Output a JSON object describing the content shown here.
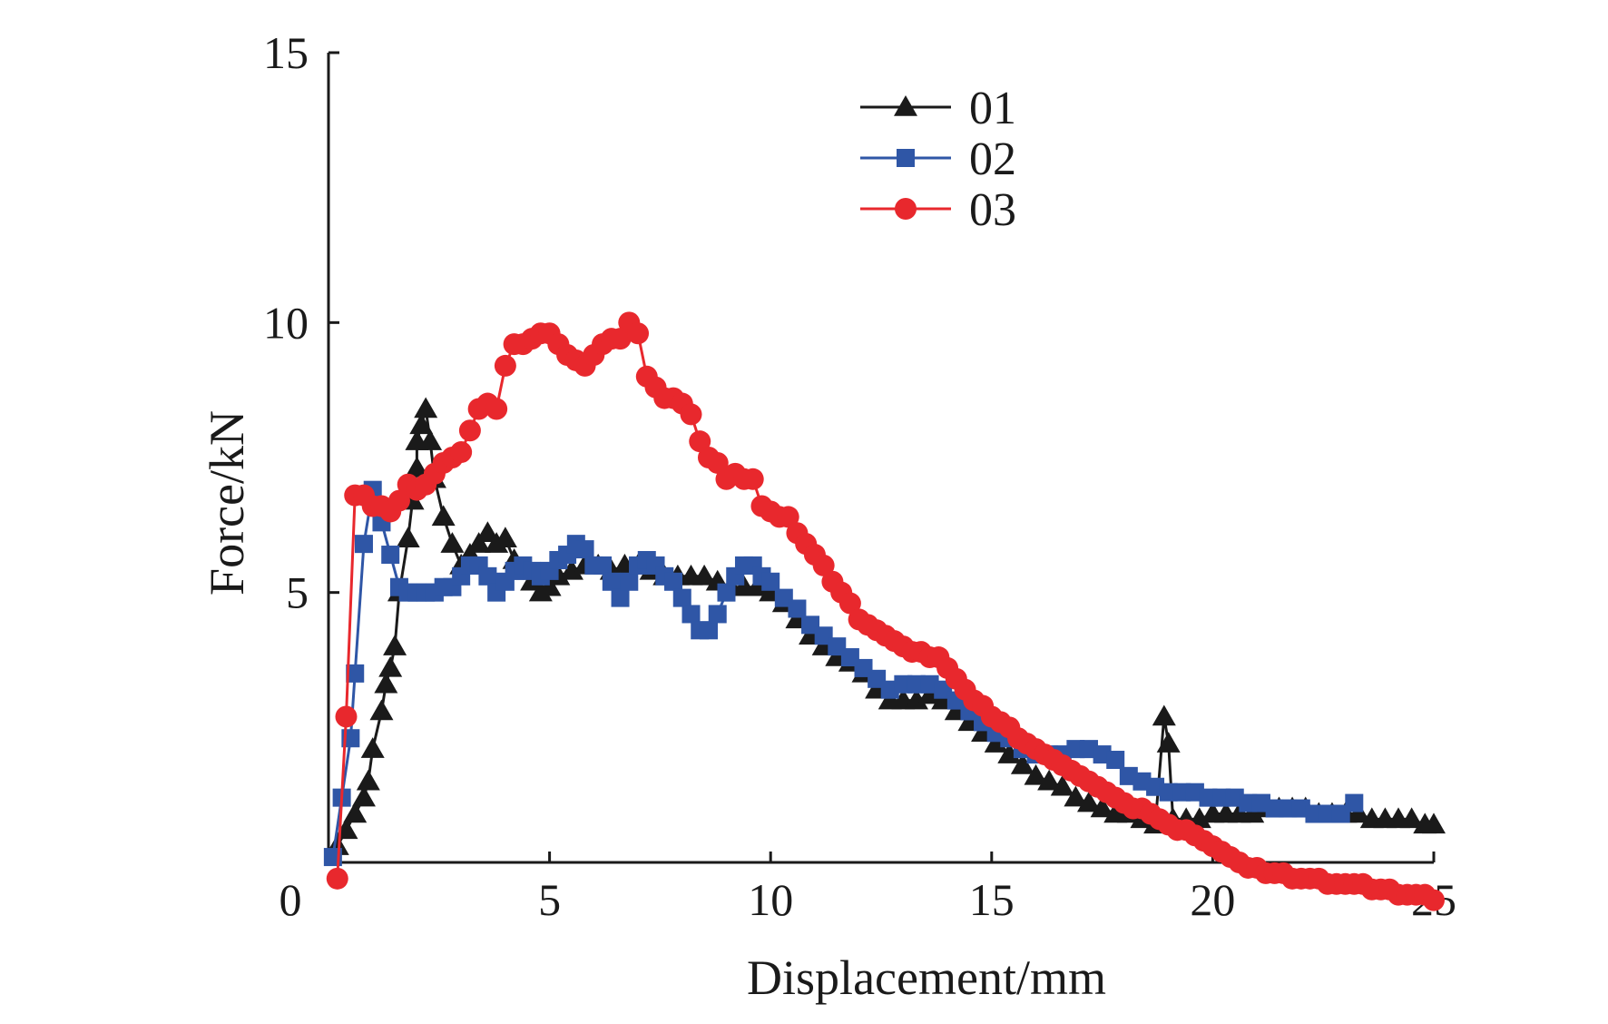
{
  "chart_data": {
    "type": "line",
    "xlabel": "Displacement/mm",
    "ylabel": "Force/kN",
    "xlim": [
      0,
      25
    ],
    "ylim": [
      0,
      15
    ],
    "xticks": [
      "0",
      "5",
      "10",
      "15",
      "20",
      "25"
    ],
    "yticks": [
      "5",
      "10",
      "15"
    ],
    "grid": false,
    "legend_position": "top-center",
    "series": [
      {
        "name": "01",
        "marker": "triangle",
        "color": "#1a1a1a",
        "points": [
          [
            0.2,
            0.3
          ],
          [
            0.4,
            0.6
          ],
          [
            0.6,
            0.9
          ],
          [
            0.8,
            1.2
          ],
          [
            0.9,
            1.5
          ],
          [
            1.0,
            2.1
          ],
          [
            1.2,
            2.8
          ],
          [
            1.3,
            3.3
          ],
          [
            1.4,
            3.6
          ],
          [
            1.5,
            4.0
          ],
          [
            1.6,
            5.0
          ],
          [
            1.8,
            6.0
          ],
          [
            1.9,
            6.7
          ],
          [
            2.0,
            7.3
          ],
          [
            2.0,
            7.8
          ],
          [
            2.1,
            8.1
          ],
          [
            2.2,
            8.4
          ],
          [
            2.3,
            7.8
          ],
          [
            2.4,
            7.1
          ],
          [
            2.6,
            6.4
          ],
          [
            2.8,
            5.9
          ],
          [
            3.0,
            5.5
          ],
          [
            3.2,
            5.7
          ],
          [
            3.4,
            5.9
          ],
          [
            3.6,
            6.1
          ],
          [
            3.8,
            5.9
          ],
          [
            4.0,
            6.0
          ],
          [
            4.2,
            5.6
          ],
          [
            4.4,
            5.4
          ],
          [
            4.6,
            5.2
          ],
          [
            4.8,
            5.0
          ],
          [
            5.0,
            5.1
          ],
          [
            5.2,
            5.3
          ],
          [
            5.5,
            5.4
          ],
          [
            5.8,
            5.5
          ],
          [
            6.1,
            5.5
          ],
          [
            6.4,
            5.4
          ],
          [
            6.7,
            5.5
          ],
          [
            7.0,
            5.5
          ],
          [
            7.3,
            5.4
          ],
          [
            7.6,
            5.3
          ],
          [
            7.9,
            5.3
          ],
          [
            8.2,
            5.3
          ],
          [
            8.5,
            5.3
          ],
          [
            8.8,
            5.2
          ],
          [
            9.1,
            5.1
          ],
          [
            9.4,
            5.1
          ],
          [
            9.7,
            5.1
          ],
          [
            10.0,
            5.0
          ],
          [
            10.3,
            4.8
          ],
          [
            10.6,
            4.5
          ],
          [
            10.9,
            4.2
          ],
          [
            11.2,
            4.0
          ],
          [
            11.5,
            3.8
          ],
          [
            11.8,
            3.7
          ],
          [
            12.1,
            3.5
          ],
          [
            12.4,
            3.2
          ],
          [
            12.7,
            3.0
          ],
          [
            13.0,
            3.0
          ],
          [
            13.3,
            3.0
          ],
          [
            13.6,
            3.1
          ],
          [
            13.9,
            3.0
          ],
          [
            14.2,
            2.8
          ],
          [
            14.5,
            2.6
          ],
          [
            14.8,
            2.4
          ],
          [
            15.1,
            2.2
          ],
          [
            15.4,
            2.0
          ],
          [
            15.7,
            1.8
          ],
          [
            16.0,
            1.6
          ],
          [
            16.3,
            1.5
          ],
          [
            16.6,
            1.4
          ],
          [
            16.9,
            1.2
          ],
          [
            17.2,
            1.1
          ],
          [
            17.5,
            1.0
          ],
          [
            17.8,
            0.9
          ],
          [
            18.1,
            0.9
          ],
          [
            18.4,
            0.8
          ],
          [
            18.7,
            0.7
          ],
          [
            18.9,
            2.7
          ],
          [
            19.0,
            2.2
          ],
          [
            19.1,
            0.8
          ],
          [
            19.4,
            0.8
          ],
          [
            19.7,
            0.8
          ],
          [
            20.0,
            0.9
          ],
          [
            20.3,
            0.9
          ],
          [
            20.6,
            0.9
          ],
          [
            20.9,
            0.9
          ],
          [
            21.2,
            1.0
          ],
          [
            21.5,
            1.0
          ],
          [
            21.8,
            1.0
          ],
          [
            22.1,
            1.0
          ],
          [
            22.4,
            0.9
          ],
          [
            22.7,
            0.9
          ],
          [
            23.0,
            0.9
          ],
          [
            23.3,
            0.9
          ],
          [
            23.6,
            0.8
          ],
          [
            23.9,
            0.8
          ],
          [
            24.2,
            0.8
          ],
          [
            24.5,
            0.8
          ],
          [
            24.8,
            0.7
          ],
          [
            25.0,
            0.7
          ]
        ]
      },
      {
        "name": "02",
        "marker": "square",
        "color": "#2f56a6",
        "points": [
          [
            0.1,
            0.1
          ],
          [
            0.3,
            1.2
          ],
          [
            0.5,
            2.3
          ],
          [
            0.6,
            3.5
          ],
          [
            0.8,
            5.9
          ],
          [
            1.0,
            6.9
          ],
          [
            1.2,
            6.3
          ],
          [
            1.4,
            5.7
          ],
          [
            1.6,
            5.1
          ],
          [
            1.8,
            5.0
          ],
          [
            2.0,
            5.0
          ],
          [
            2.2,
            5.0
          ],
          [
            2.4,
            5.0
          ],
          [
            2.6,
            5.1
          ],
          [
            2.8,
            5.1
          ],
          [
            3.0,
            5.3
          ],
          [
            3.2,
            5.5
          ],
          [
            3.4,
            5.5
          ],
          [
            3.6,
            5.3
          ],
          [
            3.8,
            5.0
          ],
          [
            4.0,
            5.2
          ],
          [
            4.2,
            5.4
          ],
          [
            4.4,
            5.5
          ],
          [
            4.6,
            5.4
          ],
          [
            4.8,
            5.3
          ],
          [
            5.0,
            5.4
          ],
          [
            5.2,
            5.6
          ],
          [
            5.4,
            5.7
          ],
          [
            5.6,
            5.9
          ],
          [
            5.8,
            5.8
          ],
          [
            6.0,
            5.5
          ],
          [
            6.2,
            5.5
          ],
          [
            6.4,
            5.2
          ],
          [
            6.6,
            4.9
          ],
          [
            6.8,
            5.2
          ],
          [
            7.0,
            5.5
          ],
          [
            7.2,
            5.6
          ],
          [
            7.4,
            5.5
          ],
          [
            7.6,
            5.3
          ],
          [
            7.8,
            5.2
          ],
          [
            8.0,
            4.9
          ],
          [
            8.2,
            4.6
          ],
          [
            8.4,
            4.3
          ],
          [
            8.6,
            4.3
          ],
          [
            8.8,
            4.6
          ],
          [
            9.0,
            5.0
          ],
          [
            9.2,
            5.3
          ],
          [
            9.4,
            5.5
          ],
          [
            9.6,
            5.5
          ],
          [
            9.8,
            5.3
          ],
          [
            10.0,
            5.2
          ],
          [
            10.3,
            4.9
          ],
          [
            10.6,
            4.7
          ],
          [
            10.9,
            4.4
          ],
          [
            11.2,
            4.2
          ],
          [
            11.5,
            4.0
          ],
          [
            11.8,
            3.8
          ],
          [
            12.1,
            3.6
          ],
          [
            12.4,
            3.4
          ],
          [
            12.7,
            3.2
          ],
          [
            13.0,
            3.3
          ],
          [
            13.3,
            3.3
          ],
          [
            13.6,
            3.3
          ],
          [
            13.9,
            3.2
          ],
          [
            14.2,
            3.0
          ],
          [
            14.5,
            2.8
          ],
          [
            14.8,
            2.6
          ],
          [
            15.1,
            2.4
          ],
          [
            15.4,
            2.3
          ],
          [
            15.7,
            2.1
          ],
          [
            16.0,
            2.0
          ],
          [
            16.3,
            2.0
          ],
          [
            16.6,
            2.0
          ],
          [
            16.9,
            2.1
          ],
          [
            17.2,
            2.1
          ],
          [
            17.5,
            2.0
          ],
          [
            17.8,
            1.9
          ],
          [
            18.1,
            1.6
          ],
          [
            18.4,
            1.5
          ],
          [
            18.7,
            1.4
          ],
          [
            19.0,
            1.3
          ],
          [
            19.3,
            1.3
          ],
          [
            19.6,
            1.3
          ],
          [
            19.9,
            1.2
          ],
          [
            20.2,
            1.2
          ],
          [
            20.5,
            1.2
          ],
          [
            20.8,
            1.1
          ],
          [
            21.1,
            1.1
          ],
          [
            21.4,
            1.0
          ],
          [
            21.7,
            1.0
          ],
          [
            22.0,
            1.0
          ],
          [
            22.3,
            0.9
          ],
          [
            22.6,
            0.9
          ],
          [
            22.9,
            0.9
          ],
          [
            23.2,
            1.1
          ]
        ]
      },
      {
        "name": "03",
        "marker": "circle",
        "color": "#e8282d",
        "points": [
          [
            0.2,
            -0.3
          ],
          [
            0.4,
            2.7
          ],
          [
            0.6,
            6.8
          ],
          [
            0.8,
            6.8
          ],
          [
            1.0,
            6.6
          ],
          [
            1.2,
            6.6
          ],
          [
            1.4,
            6.5
          ],
          [
            1.6,
            6.7
          ],
          [
            1.8,
            7.0
          ],
          [
            2.0,
            6.9
          ],
          [
            2.2,
            7.0
          ],
          [
            2.4,
            7.2
          ],
          [
            2.6,
            7.4
          ],
          [
            2.8,
            7.5
          ],
          [
            3.0,
            7.6
          ],
          [
            3.2,
            8.0
          ],
          [
            3.4,
            8.4
          ],
          [
            3.6,
            8.5
          ],
          [
            3.8,
            8.4
          ],
          [
            4.0,
            9.2
          ],
          [
            4.2,
            9.6
          ],
          [
            4.4,
            9.6
          ],
          [
            4.6,
            9.7
          ],
          [
            4.8,
            9.8
          ],
          [
            5.0,
            9.8
          ],
          [
            5.2,
            9.6
          ],
          [
            5.4,
            9.4
          ],
          [
            5.6,
            9.3
          ],
          [
            5.8,
            9.2
          ],
          [
            6.0,
            9.4
          ],
          [
            6.2,
            9.6
          ],
          [
            6.4,
            9.7
          ],
          [
            6.6,
            9.7
          ],
          [
            6.8,
            10.0
          ],
          [
            7.0,
            9.8
          ],
          [
            7.2,
            9.0
          ],
          [
            7.4,
            8.8
          ],
          [
            7.6,
            8.6
          ],
          [
            7.8,
            8.6
          ],
          [
            8.0,
            8.5
          ],
          [
            8.2,
            8.3
          ],
          [
            8.4,
            7.8
          ],
          [
            8.6,
            7.5
          ],
          [
            8.8,
            7.4
          ],
          [
            9.0,
            7.1
          ],
          [
            9.2,
            7.2
          ],
          [
            9.4,
            7.1
          ],
          [
            9.6,
            7.1
          ],
          [
            9.8,
            6.6
          ],
          [
            10.0,
            6.5
          ],
          [
            10.2,
            6.4
          ],
          [
            10.4,
            6.4
          ],
          [
            10.6,
            6.1
          ],
          [
            10.8,
            5.9
          ],
          [
            11.0,
            5.7
          ],
          [
            11.2,
            5.5
          ],
          [
            11.4,
            5.2
          ],
          [
            11.6,
            5.0
          ],
          [
            11.8,
            4.8
          ],
          [
            12.0,
            4.5
          ],
          [
            12.2,
            4.4
          ],
          [
            12.4,
            4.3
          ],
          [
            12.6,
            4.2
          ],
          [
            12.8,
            4.1
          ],
          [
            13.0,
            4.0
          ],
          [
            13.2,
            3.9
          ],
          [
            13.4,
            3.9
          ],
          [
            13.6,
            3.8
          ],
          [
            13.8,
            3.8
          ],
          [
            14.0,
            3.6
          ],
          [
            14.2,
            3.4
          ],
          [
            14.4,
            3.2
          ],
          [
            14.6,
            3.0
          ],
          [
            14.8,
            2.9
          ],
          [
            15.0,
            2.7
          ],
          [
            15.2,
            2.6
          ],
          [
            15.4,
            2.5
          ],
          [
            15.6,
            2.3
          ],
          [
            15.8,
            2.2
          ],
          [
            16.0,
            2.1
          ],
          [
            16.2,
            2.0
          ],
          [
            16.4,
            1.9
          ],
          [
            16.6,
            1.8
          ],
          [
            16.8,
            1.7
          ],
          [
            17.0,
            1.6
          ],
          [
            17.2,
            1.5
          ],
          [
            17.4,
            1.4
          ],
          [
            17.6,
            1.3
          ],
          [
            17.8,
            1.2
          ],
          [
            18.0,
            1.1
          ],
          [
            18.2,
            1.0
          ],
          [
            18.4,
            1.0
          ],
          [
            18.6,
            0.9
          ],
          [
            18.8,
            0.8
          ],
          [
            19.0,
            0.7
          ],
          [
            19.2,
            0.6
          ],
          [
            19.4,
            0.6
          ],
          [
            19.6,
            0.5
          ],
          [
            19.8,
            0.4
          ],
          [
            20.0,
            0.3
          ],
          [
            20.2,
            0.2
          ],
          [
            20.4,
            0.1
          ],
          [
            20.6,
            0.0
          ],
          [
            20.8,
            -0.1
          ],
          [
            21.0,
            -0.1
          ],
          [
            21.2,
            -0.2
          ],
          [
            21.4,
            -0.2
          ],
          [
            21.6,
            -0.2
          ],
          [
            21.8,
            -0.3
          ],
          [
            22.0,
            -0.3
          ],
          [
            22.2,
            -0.3
          ],
          [
            22.4,
            -0.3
          ],
          [
            22.6,
            -0.4
          ],
          [
            22.8,
            -0.4
          ],
          [
            23.0,
            -0.4
          ],
          [
            23.2,
            -0.4
          ],
          [
            23.4,
            -0.4
          ],
          [
            23.6,
            -0.5
          ],
          [
            23.8,
            -0.5
          ],
          [
            24.0,
            -0.5
          ],
          [
            24.2,
            -0.6
          ],
          [
            24.4,
            -0.6
          ],
          [
            24.6,
            -0.6
          ],
          [
            24.8,
            -0.6
          ],
          [
            25.0,
            -0.7
          ]
        ]
      }
    ]
  }
}
